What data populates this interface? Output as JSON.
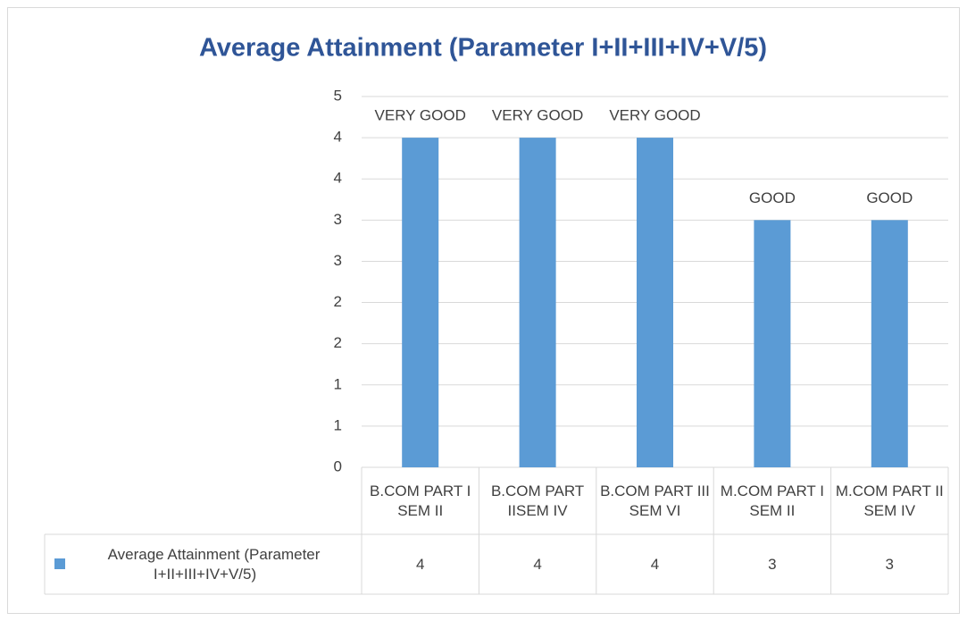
{
  "chart_data": {
    "type": "bar",
    "title": "Average Attainment (Parameter I+II+III+IV+V/5)",
    "categories": [
      "B.COM PART I SEM II",
      "B.COM PART IISEM IV",
      "B.COM PART III SEM VI",
      "M.COM PART I SEM II",
      "M.COM PART II SEM IV"
    ],
    "series": [
      {
        "name": "Average Attainment (Parameter I+II+III+IV+V/5)",
        "color": "#5b9bd5",
        "values": [
          4,
          4,
          4,
          3,
          3
        ]
      }
    ],
    "data_labels": [
      "VERY GOOD",
      "VERY GOOD",
      "VERY GOOD",
      "GOOD",
      "GOOD"
    ],
    "ylim": [
      0,
      4.5
    ],
    "yticks": [
      0,
      {
        "value": 0.5,
        "label": "1"
      },
      1,
      {
        "value": 1.5,
        "label": "2"
      },
      2,
      {
        "value": 2.5,
        "label": "3"
      },
      3,
      {
        "value": 3.5,
        "label": "4"
      },
      4,
      {
        "value": 4.5,
        "label": "5"
      }
    ],
    "grid": true
  }
}
